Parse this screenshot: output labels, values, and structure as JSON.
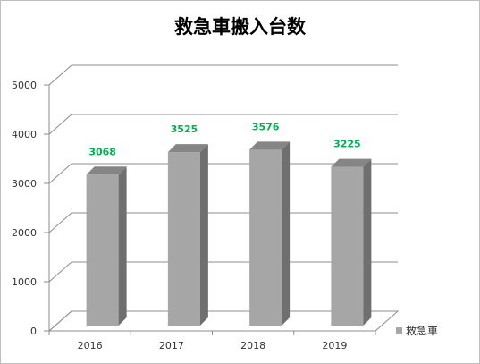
{
  "chart_data": {
    "type": "bar",
    "title": "救急車搬入台数",
    "categories": [
      "2016",
      "2017",
      "2018",
      "2019"
    ],
    "series": [
      {
        "name": "救急車",
        "values": [
          3068,
          3525,
          3576,
          3225
        ]
      }
    ],
    "ylim": [
      0,
      5000
    ],
    "yticks": [
      "0",
      "1000",
      "2000",
      "3000",
      "4000",
      "5000"
    ],
    "grid": true,
    "legend_position": "bottom-right",
    "data_label_color": "#00b050",
    "bar_colors": {
      "front": "#a6a6a6",
      "side": "#6f6f6f",
      "top": "#858585"
    },
    "style": "3d-bar"
  }
}
